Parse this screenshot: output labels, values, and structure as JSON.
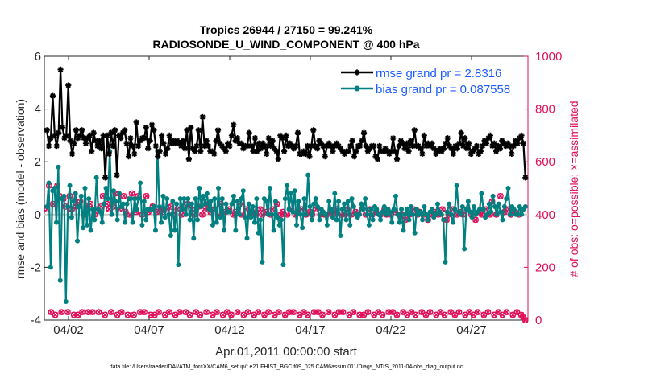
{
  "chart_data": {
    "type": "line",
    "title_line1": "Tropics 26944 / 27150 = 99.241%",
    "title_line2": "RADIOSONDE_U_WIND_COMPONENT @ 400 hPa",
    "xlabel": "Apr.01,2011 00:00:00 start",
    "ylabel_left": "rmse and bias (model - observation)",
    "ylabel_right": "# of obs: o=possible; ×=assimilated",
    "x_range": [
      0.5,
      30.5
    ],
    "y_left_range": [
      -4,
      6
    ],
    "y_right_range": [
      0,
      1000
    ],
    "x_ticks": [
      {
        "x": 2,
        "label": "04/02"
      },
      {
        "x": 7,
        "label": "04/07"
      },
      {
        "x": 12,
        "label": "04/12"
      },
      {
        "x": 17,
        "label": "04/17"
      },
      {
        "x": 22,
        "label": "04/22"
      },
      {
        "x": 27,
        "label": "04/27"
      }
    ],
    "y_left_ticks": [
      -4,
      -2,
      0,
      2,
      4,
      6
    ],
    "y_right_ticks": [
      0,
      200,
      400,
      600,
      800,
      1000
    ],
    "legend": [
      {
        "name": "rmse grand pr = 2.8316",
        "color": "#000000"
      },
      {
        "name": "bias grand pr = 0.087558",
        "color": "#008080"
      }
    ],
    "series": [
      {
        "name": "rmse",
        "axis": "left",
        "color": "#000000",
        "marker": "star",
        "values": [
          3.2,
          2.6,
          2.9,
          4.5,
          3.0,
          2.6,
          3.1,
          5.5,
          3.3,
          2.9,
          3.0,
          4.9,
          2.8,
          2.3,
          2.7,
          3.2,
          2.9,
          3.0,
          3.2,
          2.9,
          2.7,
          2.9,
          3.0,
          2.4,
          3.1,
          2.8,
          2.6,
          2.8,
          2.5,
          3.0,
          1.4,
          3.0,
          2.3,
          3.1,
          2.6,
          3.2,
          1.5,
          3.0,
          2.9,
          3.1,
          3.2,
          2.7,
          2.2,
          2.9,
          2.6,
          2.3,
          3.5,
          2.6,
          2.8,
          2.9,
          2.9,
          3.3,
          2.5,
          2.8,
          3.4,
          3.2,
          2.6,
          2.2,
          2.4,
          3.0,
          2.7,
          2.3,
          2.5,
          3.0,
          2.7,
          2.8,
          2.7,
          2.8,
          2.7,
          2.6,
          2.8,
          2.5,
          3.2,
          2.1,
          3.3,
          2.5,
          2.4,
          2.6,
          3.2,
          2.4,
          3.7,
          2.6,
          2.8,
          2.6,
          2.4,
          2.4,
          2.3,
          2.8,
          3.2,
          2.7,
          2.6,
          2.5,
          2.4,
          2.7,
          2.6,
          3.0,
          3.4,
          2.8,
          2.9,
          2.7,
          2.7,
          2.5,
          2.6,
          2.6,
          3.1,
          2.6,
          2.4,
          2.9,
          2.4,
          2.7,
          2.5,
          2.7,
          2.6,
          2.3,
          2.9,
          2.6,
          2.8,
          2.5,
          2.4,
          2.1,
          3.0,
          2.9,
          2.4,
          3.0,
          2.6,
          2.7,
          2.6,
          2.5,
          2.6,
          3.1,
          2.3,
          2.3,
          2.4,
          2.3,
          2.6,
          2.2,
          2.6,
          3.2,
          2.6,
          2.5,
          2.8,
          2.7,
          2.6,
          2.2,
          2.6,
          2.7,
          2.6,
          2.4,
          2.6,
          2.7,
          2.6,
          2.5,
          2.4,
          2.3,
          2.4,
          2.4,
          2.6,
          2.8,
          2.2,
          2.4,
          2.6,
          2.6,
          2.8,
          3.1,
          2.6,
          2.4,
          2.5,
          2.6,
          2.6,
          2.2,
          2.1,
          2.6,
          2.4,
          2.4,
          2.5,
          2.4,
          2.3,
          2.4,
          2.9,
          2.4,
          2.1,
          2.6,
          2.8,
          2.7,
          2.5,
          2.7,
          2.4,
          2.8,
          2.6,
          3.2,
          2.6,
          2.6,
          2.5,
          2.3,
          3.0,
          2.6,
          2.7,
          2.6,
          2.7,
          2.5,
          2.3,
          2.4,
          2.5,
          2.4,
          2.5,
          2.7,
          2.9,
          2.6,
          2.5,
          2.3,
          2.6,
          2.5,
          2.7,
          3.1,
          2.6,
          2.9,
          2.5,
          2.7,
          2.3,
          2.4,
          2.5,
          2.6,
          2.3,
          2.4,
          2.6,
          2.8,
          2.7,
          2.9,
          3.0,
          2.6,
          2.7,
          2.4,
          2.6,
          2.5,
          2.8,
          2.7,
          2.6,
          2.7,
          2.6,
          2.3,
          2.6,
          2.8,
          2.7,
          2.9,
          3.0,
          2.7,
          1.4
        ]
      },
      {
        "name": "bias",
        "axis": "left",
        "color": "#008080",
        "marker": "dot",
        "values": [
          0.3,
          1.2,
          -2.0,
          0.9,
          1.0,
          -0.3,
          1.8,
          -2.5,
          0.6,
          0.7,
          -3.3,
          0.3,
          1.1,
          -0.1,
          0.5,
          0.8,
          -1.0,
          0.3,
          0.7,
          -0.5,
          1.0,
          -0.4,
          0.6,
          -0.6,
          0.2,
          -0.2,
          1.4,
          0.2,
          0.1,
          -0.3,
          0.4,
          1.0,
          0.6,
          2.4,
          0.0,
          0.9,
          0.5,
          -0.2,
          0.8,
          0.3,
          0.4,
          -0.3,
          0.4,
          0.6,
          0.6,
          -0.3,
          0.6,
          0.2,
          0.6,
          1.2,
          -0.4,
          0.5,
          -0.2,
          0.2,
          0.2,
          0.2,
          0.3,
          -0.6,
          2.4,
          0.3,
          -0.3,
          0.7,
          -0.1,
          0.6,
          0.0,
          -0.8,
          0.5,
          -0.6,
          0.4,
          -1.9,
          0.6,
          0.2,
          0.6,
          0.0,
          0.6,
          -0.2,
          0.4,
          -0.9,
          0.6,
          -0.2,
          1.0,
          0.3,
          0.7,
          0.4,
          0.8,
          0.2,
          0.5,
          -0.4,
          0.6,
          -0.3,
          1.0,
          -0.1,
          0.6,
          -0.6,
          0.4,
          0.1,
          0.1,
          0.4,
          0.7,
          -0.6,
          0.5,
          0.0,
          0.6,
          0.9,
          -0.1,
          -0.9,
          0.4,
          -0.1,
          0.3,
          -0.3,
          0.6,
          -0.7,
          -0.2,
          -1.8,
          0.6,
          0.5,
          0.0,
          1.0,
          0.0,
          -0.6,
          0.5,
          -0.1,
          -0.4,
          -0.2,
          -1.9,
          0.6,
          1.1,
          0.2,
          0.8,
          0.1,
          0.9,
          -0.4,
          0.5,
          0.0,
          -0.5,
          0.6,
          0.0,
          1.5,
          0.3,
          -0.2,
          0.4,
          0.6,
          0.3,
          -0.2,
          0.2,
          0.1,
          0.0,
          -0.4,
          0.5,
          0.2,
          -0.1,
          0.8,
          -0.2,
          0.5,
          -0.8,
          0.2,
          0.4,
          -0.2,
          0.5,
          -0.4,
          0.6,
          0.3,
          0.0,
          -0.1,
          0.0,
          0.4,
          0.2,
          0.6,
          0.0,
          -0.4,
          0.2,
          -0.2,
          0.3,
          0.2,
          0.0,
          -0.2,
          0.1,
          0.3,
          0.0,
          0.2,
          0.1,
          -0.3,
          0.2,
          0.7,
          0.0,
          -0.3,
          0.2,
          -0.6,
          0.0,
          0.2,
          -0.2,
          0.3,
          0.0,
          -0.7,
          0.2,
          0.0,
          0.1,
          -0.2,
          0.3,
          0.0,
          -0.2,
          0.1,
          0.2,
          -0.1,
          0.0,
          0.4,
          0.1,
          0.0,
          -0.2,
          -1.8,
          0.1,
          0.4,
          0.0,
          -0.3,
          0.2,
          1.1,
          0.1,
          0.0,
          0.3,
          -1.3,
          0.2,
          0.5,
          0.1,
          -0.1,
          0.3,
          0.0,
          0.1,
          0.2,
          0.8,
          0.2,
          -0.1,
          0.0,
          0.4,
          0.1,
          0.7,
          0.3,
          0.0,
          0.4,
          0.1,
          -0.2,
          0.3,
          0.6,
          1.0,
          0.0,
          0.3,
          0.2,
          0.0,
          0.0,
          0.3,
          0.0,
          0.2,
          0.3
        ]
      },
      {
        "name": "obs possible",
        "axis": "right",
        "color": "#e0105a",
        "marker": "circle",
        "values": [
          420,
          510,
          30,
          440,
          20,
          510,
          470,
          30,
          460,
          430,
          30,
          470,
          420,
          20,
          430,
          20,
          450,
          30,
          400,
          430,
          30,
          440,
          30,
          400,
          420,
          30,
          430,
          470,
          20,
          440,
          420,
          30,
          430,
          480,
          20,
          420,
          30,
          470,
          410,
          20,
          400,
          480,
          20,
          410,
          470,
          30,
          400,
          30,
          470,
          410,
          20,
          430,
          20,
          410,
          30,
          420,
          410,
          20,
          420,
          30,
          430,
          400,
          20,
          420,
          30,
          400,
          420,
          30,
          440,
          20,
          420,
          400,
          30,
          430,
          20,
          400,
          420,
          30,
          440,
          410,
          20,
          420,
          30,
          400,
          440,
          20,
          410,
          30,
          420,
          20,
          400,
          410,
          30,
          440,
          400,
          20,
          420,
          30,
          400,
          410,
          20,
          400,
          30,
          420,
          400,
          20,
          410,
          30,
          400,
          420,
          20,
          440,
          30,
          400,
          410,
          20,
          400,
          30,
          420,
          30,
          400,
          410,
          20,
          420,
          30,
          400,
          20,
          410,
          400,
          30,
          420,
          30,
          400,
          20,
          400,
          400,
          30,
          410,
          400,
          20,
          420,
          30,
          400,
          30,
          400,
          420,
          20,
          400,
          30,
          410,
          400,
          20,
          420,
          20,
          400,
          30,
          420,
          400,
          20,
          410,
          30,
          400,
          20,
          420,
          400,
          30,
          400,
          30,
          410,
          20,
          400,
          400,
          30,
          380,
          20,
          400,
          30,
          420,
          20,
          400,
          410,
          30,
          400,
          20,
          380,
          30,
          400,
          410,
          20,
          400,
          30,
          420,
          20,
          380,
          400,
          30,
          420,
          20,
          400,
          30,
          410,
          400,
          20,
          420,
          30,
          400,
          20,
          380,
          30,
          410,
          400,
          20,
          420,
          30,
          400,
          450,
          20,
          400,
          30,
          470,
          20,
          410,
          30,
          420,
          400,
          20,
          410,
          30,
          400,
          20,
          10,
          0
        ]
      },
      {
        "name": "obs assimilated",
        "axis": "right",
        "color": "#e0105a",
        "marker": "x",
        "values": [
          420,
          510,
          30,
          440,
          20,
          510,
          470,
          30,
          460,
          430,
          30,
          470,
          420,
          20,
          430,
          20,
          450,
          30,
          400,
          430,
          30,
          440,
          30,
          400,
          420,
          30,
          430,
          470,
          20,
          440,
          420,
          30,
          430,
          480,
          20,
          420,
          30,
          470,
          410,
          20,
          400,
          480,
          20,
          410,
          470,
          30,
          400,
          30,
          470,
          410,
          20,
          430,
          20,
          410,
          30,
          420,
          410,
          20,
          420,
          30,
          430,
          400,
          20,
          420,
          30,
          400,
          420,
          30,
          440,
          20,
          420,
          400,
          30,
          430,
          20,
          400,
          420,
          30,
          440,
          410,
          20,
          420,
          30,
          400,
          440,
          20,
          410,
          30,
          420,
          20,
          400,
          410,
          30,
          440,
          400,
          20,
          420,
          30,
          400,
          410,
          20,
          400,
          30,
          420,
          400,
          20,
          410,
          30,
          400,
          420,
          20,
          440,
          30,
          400,
          410,
          20,
          400,
          30,
          420,
          30,
          400,
          410,
          20,
          420,
          30,
          400,
          20,
          410,
          400,
          30,
          420,
          30,
          400,
          20,
          400,
          400,
          30,
          410,
          400,
          20,
          420,
          30,
          400,
          30,
          400,
          420,
          20,
          400,
          30,
          410,
          400,
          20,
          420,
          20,
          400,
          30,
          420,
          400,
          20,
          410,
          30,
          400,
          20,
          420,
          400,
          30,
          400,
          30,
          410,
          20,
          400,
          400,
          30,
          380,
          20,
          400,
          30,
          420,
          20,
          400,
          410,
          30,
          400,
          20,
          380,
          30,
          400,
          410,
          20,
          400,
          30,
          420,
          20,
          380,
          400,
          30,
          420,
          20,
          400,
          30,
          410,
          400,
          20,
          420,
          30,
          400,
          20,
          380,
          30,
          410,
          400,
          20,
          420,
          30,
          400,
          450,
          20,
          400,
          30,
          470,
          20,
          410,
          30,
          420,
          400,
          20,
          410,
          30,
          400,
          20,
          10,
          0
        ]
      }
    ]
  },
  "footer": {
    "note": "data file: /Users/raeder/DAI/ATM_forcXX/CAM6_setup/f.e21.FHIST_BGC.f09_025.CAM6assim.011/Diags_NTrS_2011-04/obs_diag_output.nc"
  }
}
